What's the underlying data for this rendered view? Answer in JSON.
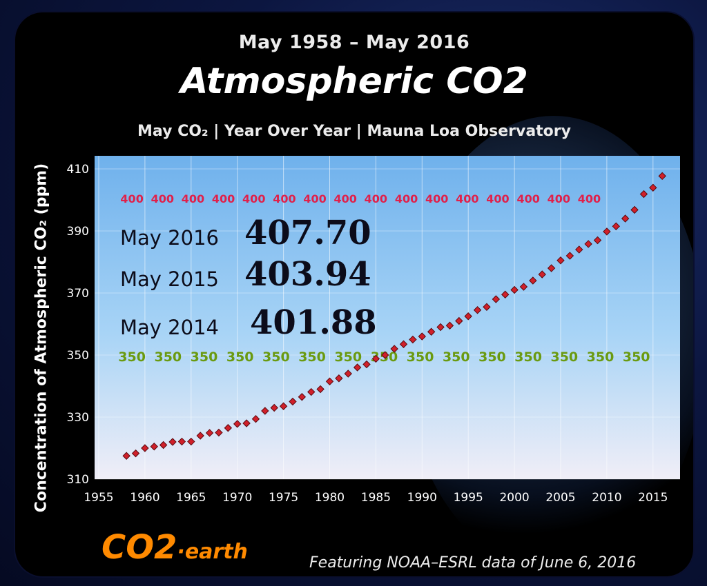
{
  "header": {
    "date_range": "May 1958 – May 2016",
    "title": "Atmospheric CO2",
    "subtitle": "May CO₂  | Year Over Year | Mauna Loa Observatory"
  },
  "readouts": [
    {
      "label": "May 2016",
      "value": "407.70"
    },
    {
      "label": "May 2015",
      "value": "403.94"
    },
    {
      "label": "May 2014",
      "value": "401.88"
    }
  ],
  "footer": {
    "logo": "CO2",
    "logo_suffix": "·earth",
    "credit": "Featuring NOAA–ESRL data of June 6, 2016"
  },
  "chart_data": {
    "type": "scatter",
    "title": "Atmospheric CO2",
    "ylabel": "Concentration of Atmospheric CO₂ (ppm)",
    "xlabel": "",
    "xlim": [
      1955,
      2019
    ],
    "ylim": [
      310,
      410
    ],
    "x_ticks": [
      1955,
      1960,
      1965,
      1970,
      1975,
      1980,
      1985,
      1990,
      1995,
      2000,
      2005,
      2010,
      2015
    ],
    "y_ticks": [
      310,
      330,
      350,
      370,
      390,
      410
    ],
    "grid": true,
    "marker_color": "#d0202a",
    "threshold_lines": [
      {
        "value": 400,
        "label": "400",
        "color": "#e0204a"
      },
      {
        "value": 350,
        "label": "350",
        "color": "#6a9a10"
      }
    ],
    "x": [
      1958,
      1959,
      1960,
      1961,
      1962,
      1963,
      1964,
      1965,
      1966,
      1967,
      1968,
      1969,
      1970,
      1971,
      1972,
      1973,
      1974,
      1975,
      1976,
      1977,
      1978,
      1979,
      1980,
      1981,
      1982,
      1983,
      1984,
      1985,
      1986,
      1987,
      1988,
      1989,
      1990,
      1991,
      1992,
      1993,
      1994,
      1995,
      1996,
      1997,
      1998,
      1999,
      2000,
      2001,
      2002,
      2003,
      2004,
      2005,
      2006,
      2007,
      2008,
      2009,
      2010,
      2011,
      2012,
      2013,
      2014,
      2015,
      2016
    ],
    "values": [
      317.5,
      318.3,
      320.0,
      320.5,
      321.0,
      322.0,
      322.1,
      322.1,
      324.0,
      324.9,
      325.0,
      326.5,
      327.8,
      328.0,
      329.4,
      332.0,
      333.0,
      333.5,
      335.0,
      336.5,
      338.1,
      339.0,
      341.5,
      342.5,
      344.0,
      346.0,
      347.0,
      348.8,
      350.0,
      352.0,
      353.5,
      355.0,
      356.0,
      357.5,
      359.0,
      359.5,
      361.0,
      362.5,
      364.5,
      365.5,
      368.0,
      369.5,
      371.0,
      372.0,
      374.0,
      376.0,
      378.0,
      380.5,
      382.0,
      384.0,
      385.8,
      387.0,
      389.8,
      391.5,
      394.0,
      396.8,
      401.88,
      403.94,
      407.7
    ]
  }
}
